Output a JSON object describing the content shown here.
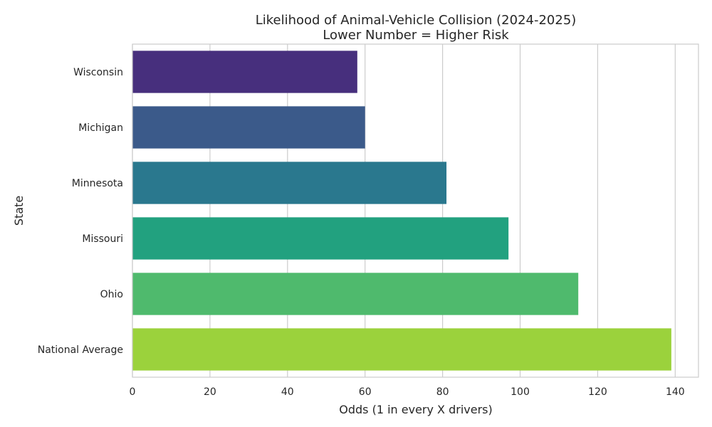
{
  "chart_data": {
    "type": "bar",
    "orientation": "horizontal",
    "title": "Likelihood of Animal-Vehicle Collision (2024-2025)",
    "subtitle": "Lower Number = Higher Risk",
    "xlabel": "Odds (1 in every X drivers)",
    "ylabel": "State",
    "categories": [
      "Wisconsin",
      "Michigan",
      "Minnesota",
      "Missouri",
      "Ohio",
      "National Average"
    ],
    "values": [
      58,
      60,
      81,
      97,
      115,
      139
    ],
    "colors": [
      "#472f7d",
      "#3b5a8a",
      "#2a788e",
      "#22a17f",
      "#4fba6d",
      "#9bd23c"
    ],
    "xlim": [
      0,
      146
    ],
    "xticks": [
      0,
      20,
      40,
      60,
      80,
      100,
      120,
      140
    ],
    "grid": true,
    "grid_axis": "x"
  }
}
